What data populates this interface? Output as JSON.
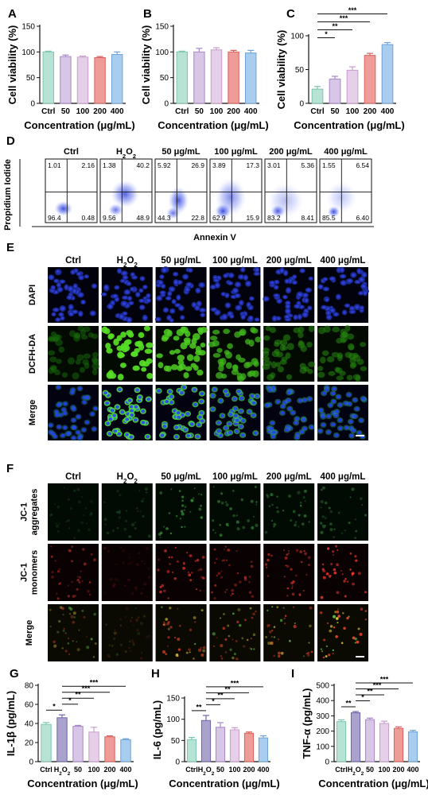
{
  "colors": {
    "ctrl": "#b7e3d4",
    "h2o2": "#a9a2cc",
    "c50": "#d7c6e6",
    "c100": "#e6cfe8",
    "c200": "#ef9c98",
    "c400": "#a9cdef",
    "edge_ctrl": "#7cc6ad",
    "edge_h2o2": "#6f66a8",
    "edge_50": "#a887c6",
    "edge_100": "#c79ccb",
    "edge_200": "#d9615c",
    "edge_400": "#6fa2d6"
  },
  "chart_data": [
    {
      "panel": "A",
      "type": "bar",
      "categories": [
        "Ctrl",
        "50",
        "100",
        "200",
        "400"
      ],
      "values": [
        100,
        91,
        90,
        89,
        95
      ],
      "errors": [
        1.5,
        3,
        2,
        2,
        5
      ],
      "ylabel": "Cell viability (%)",
      "xlabel": "Concentration (μg/mL)",
      "ylim": [
        0,
        150
      ],
      "yticks": [
        0,
        50,
        100,
        150
      ],
      "significance": []
    },
    {
      "panel": "B",
      "type": "bar",
      "categories": [
        "Ctrl",
        "50",
        "100",
        "200",
        "400"
      ],
      "values": [
        100,
        100,
        104,
        100,
        98
      ],
      "errors": [
        1.5,
        7,
        4,
        3,
        5
      ],
      "ylabel": "Cell viability (%)",
      "xlabel": "Concentration (μg/mL)",
      "ylim": [
        0,
        150
      ],
      "yticks": [
        0,
        50,
        100,
        150
      ],
      "significance": []
    },
    {
      "panel": "C",
      "type": "bar",
      "categories": [
        "Ctrl",
        "50",
        "100",
        "200",
        "400"
      ],
      "values": [
        21,
        36,
        49,
        71,
        87
      ],
      "errors": [
        4,
        4,
        5,
        3,
        3
      ],
      "ylabel": "Cell viability (%)",
      "xlabel": "Concentration (μg/mL)",
      "ylim": [
        0,
        100
      ],
      "yticks": [
        0,
        50,
        100
      ],
      "significance": [
        {
          "from": 0,
          "to": 1,
          "label": "*"
        },
        {
          "from": 0,
          "to": 2,
          "label": "**"
        },
        {
          "from": 0,
          "to": 3,
          "label": "***"
        },
        {
          "from": 0,
          "to": 4,
          "label": "***"
        }
      ]
    },
    {
      "panel": "G",
      "type": "bar",
      "categories": [
        "Ctrl",
        "H2O2",
        "50",
        "100",
        "200",
        "400"
      ],
      "values": [
        39,
        46,
        37,
        31,
        26,
        23
      ],
      "errors": [
        2,
        3,
        1,
        5,
        1,
        1
      ],
      "ylabel": "IL-1β (pg/mL)",
      "xlabel": "Concentration (μg/mL)",
      "ylim": [
        0,
        80
      ],
      "yticks": [
        0,
        20,
        40,
        60,
        80
      ],
      "significance": [
        {
          "from": 0,
          "to": 1,
          "label": "*"
        },
        {
          "from": 1,
          "to": 2,
          "label": "*"
        },
        {
          "from": 1,
          "to": 3,
          "label": "**"
        },
        {
          "from": 1,
          "to": 4,
          "label": "***"
        },
        {
          "from": 1,
          "to": 5,
          "label": "***"
        }
      ]
    },
    {
      "panel": "H",
      "type": "bar",
      "categories": [
        "Ctrl",
        "H2O2",
        "50",
        "100",
        "200",
        "400"
      ],
      "values": [
        52,
        97,
        81,
        75,
        67,
        56
      ],
      "errors": [
        5,
        12,
        11,
        5,
        3,
        5
      ],
      "ylabel": "IL-6 (pg/mL)",
      "xlabel": "Concentration (μg/mL)",
      "ylim": [
        0,
        150
      ],
      "yticks": [
        0,
        50,
        100,
        150
      ],
      "significance": [
        {
          "from": 0,
          "to": 1,
          "label": "**"
        },
        {
          "from": 1,
          "to": 2,
          "label": "*"
        },
        {
          "from": 1,
          "to": 3,
          "label": "**"
        },
        {
          "from": 1,
          "to": 4,
          "label": "**"
        },
        {
          "from": 1,
          "to": 5,
          "label": "***"
        }
      ]
    },
    {
      "panel": "I",
      "type": "bar",
      "categories": [
        "Ctrl",
        "H2O2",
        "50",
        "100",
        "200",
        "400"
      ],
      "values": [
        262,
        320,
        275,
        250,
        218,
        195
      ],
      "errors": [
        12,
        8,
        10,
        15,
        10,
        10
      ],
      "ylabel": "TNF-α (pg/mL)",
      "xlabel": "Concentration (μg/mL)",
      "ylim": [
        0,
        500
      ],
      "yticks": [
        0,
        100,
        200,
        300,
        400,
        500
      ],
      "significance": [
        {
          "from": 0,
          "to": 1,
          "label": "**"
        },
        {
          "from": 1,
          "to": 2,
          "label": "*"
        },
        {
          "from": 1,
          "to": 3,
          "label": "**"
        },
        {
          "from": 1,
          "to": 4,
          "label": "***"
        },
        {
          "from": 1,
          "to": 5,
          "label": "***"
        }
      ]
    }
  ],
  "flow": {
    "panel": "D",
    "ylabel": "Propidium Iodide",
    "xlabel": "Annexin V",
    "groups": [
      {
        "title": "Ctrl",
        "q": [
          "1.01",
          "2.16",
          "96.4",
          "0.48"
        ]
      },
      {
        "title": "H2O2",
        "q": [
          "1.38",
          "40.2",
          "9.56",
          "48.9"
        ]
      },
      {
        "title": "50 μg/mL",
        "q": [
          "5.92",
          "26.9",
          "44.3",
          "22.8"
        ]
      },
      {
        "title": "100 μg/mL",
        "q": [
          "3.89",
          "17.3",
          "62.9",
          "15.9"
        ]
      },
      {
        "title": "200 μg/mL",
        "q": [
          "3.01",
          "5.36",
          "83.2",
          "8.41"
        ]
      },
      {
        "title": "400 μg/mL",
        "q": [
          "1.55",
          "6.54",
          "85.5",
          "6.40"
        ]
      }
    ]
  },
  "micro_E": {
    "panel": "E",
    "columns": [
      "Ctrl",
      "H2O2",
      "50 μg/mL",
      "100 μg/mL",
      "200 μg/mL",
      "400 μg/mL"
    ],
    "rows": [
      "DAPI",
      "DCFH-DA",
      "Merge"
    ]
  },
  "micro_F": {
    "panel": "F",
    "columns": [
      "Ctrl",
      "H2O2",
      "50 μg/mL",
      "100 μg/mL",
      "200 μg/mL",
      "400 μg/mL"
    ],
    "rows": [
      [
        "JC-1",
        "aggregates"
      ],
      [
        "JC-1",
        "monomers"
      ],
      [
        "Merge"
      ]
    ]
  }
}
